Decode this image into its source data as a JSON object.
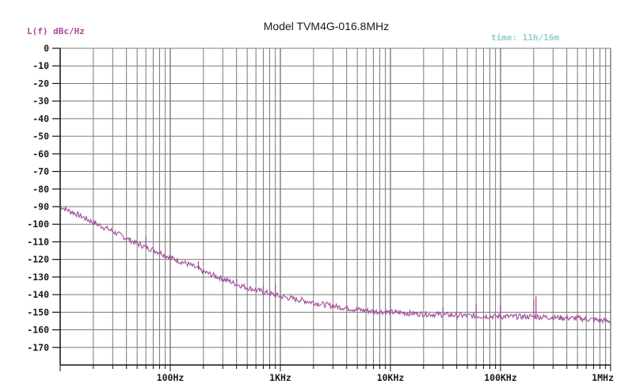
{
  "chart_data": {
    "type": "line",
    "title": "Model TVM4G-016.8MHz",
    "ylabel": "L(f) dBc/Hz",
    "time_label": "time: 11h/16m",
    "x_scale": "log",
    "xlim": [
      10,
      1000000
    ],
    "ylim": [
      -180,
      0
    ],
    "y_ticks": [
      0,
      -10,
      -20,
      -30,
      -40,
      -50,
      -60,
      -70,
      -80,
      -90,
      -100,
      -110,
      -120,
      -130,
      -140,
      -150,
      -160,
      -170
    ],
    "y_tick_labels": [
      "0",
      "-10",
      "-20",
      "-30",
      "-40",
      "-50",
      "-60",
      "-70",
      "-80",
      "-90",
      "-100",
      "-110",
      "-120",
      "-130",
      "-140",
      "-150",
      "-160",
      "-170"
    ],
    "x_ticks": [
      100,
      1000,
      10000,
      100000,
      1000000
    ],
    "x_tick_labels": [
      "100Hz",
      "1KHz",
      "10KHz",
      "100KHz",
      "1MHz"
    ],
    "grid": true,
    "colors": {
      "trace": "#a24f9c",
      "ylabel": "#b0479a",
      "time": "#8fcfcf",
      "grid": "#7a7a7a"
    },
    "series": [
      {
        "points": [
          [
            10,
            -90
          ],
          [
            15,
            -95
          ],
          [
            20,
            -99
          ],
          [
            30,
            -104
          ],
          [
            40,
            -108
          ],
          [
            50,
            -111
          ],
          [
            60,
            -113
          ],
          [
            80,
            -116
          ],
          [
            100,
            -119
          ],
          [
            150,
            -123
          ],
          [
            200,
            -127
          ],
          [
            300,
            -131
          ],
          [
            400,
            -134
          ],
          [
            500,
            -136
          ],
          [
            700,
            -138.5
          ],
          [
            1000,
            -141
          ],
          [
            1500,
            -143
          ],
          [
            2000,
            -144.5
          ],
          [
            3000,
            -146.5
          ],
          [
            5000,
            -148.5
          ],
          [
            7000,
            -149.5
          ],
          [
            10000,
            -150
          ],
          [
            20000,
            -151
          ],
          [
            50000,
            -152
          ],
          [
            100000,
            -152.5
          ],
          [
            200000,
            -152.5
          ],
          [
            500000,
            -153.5
          ],
          [
            1000000,
            -155
          ]
        ],
        "spurs": [
          [
            60,
            -107
          ],
          [
            180,
            -121
          ],
          [
            400,
            -131
          ],
          [
            700,
            -135
          ],
          [
            900,
            -134
          ],
          [
            3000,
            -148
          ],
          [
            30000,
            -147
          ],
          [
            60000,
            -145
          ],
          [
            100000,
            -146
          ],
          [
            200000,
            -143
          ],
          [
            210000,
            -141
          ]
        ]
      }
    ]
  }
}
